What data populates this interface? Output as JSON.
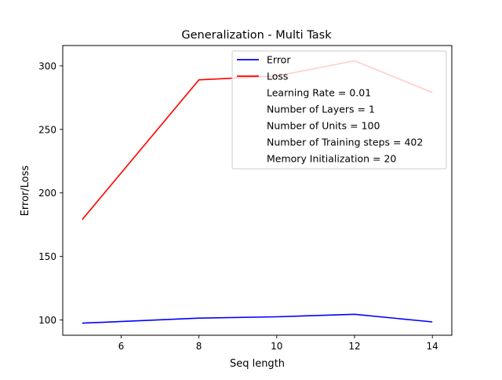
{
  "chart_data": {
    "type": "line",
    "title": "Generalization - Multi Task",
    "xlabel": "Seq length",
    "ylabel": "Error/Loss",
    "xlim": [
      4.5,
      14.5
    ],
    "ylim": [
      88,
      316
    ],
    "xticks": [
      6,
      8,
      10,
      12,
      14
    ],
    "yticks": [
      100,
      150,
      200,
      250,
      300
    ],
    "grid": false,
    "legend_position": "upper-right",
    "series": [
      {
        "name": "Error",
        "color": "#0000ff",
        "x": [
          5,
          8,
          10,
          12,
          14
        ],
        "y": [
          97.5,
          101.5,
          102.5,
          104.5,
          98.5
        ]
      },
      {
        "name": "Loss",
        "color": "#ff0000",
        "x": [
          5,
          8,
          10,
          12,
          14
        ],
        "y": [
          179,
          289,
          292,
          304,
          279
        ]
      }
    ],
    "legend_notes": [
      "Learning Rate = 0.01",
      "Number of Layers = 1",
      "Number of Units = 100",
      "Number of Training steps = 402",
      "Memory Initialization = 20"
    ]
  }
}
